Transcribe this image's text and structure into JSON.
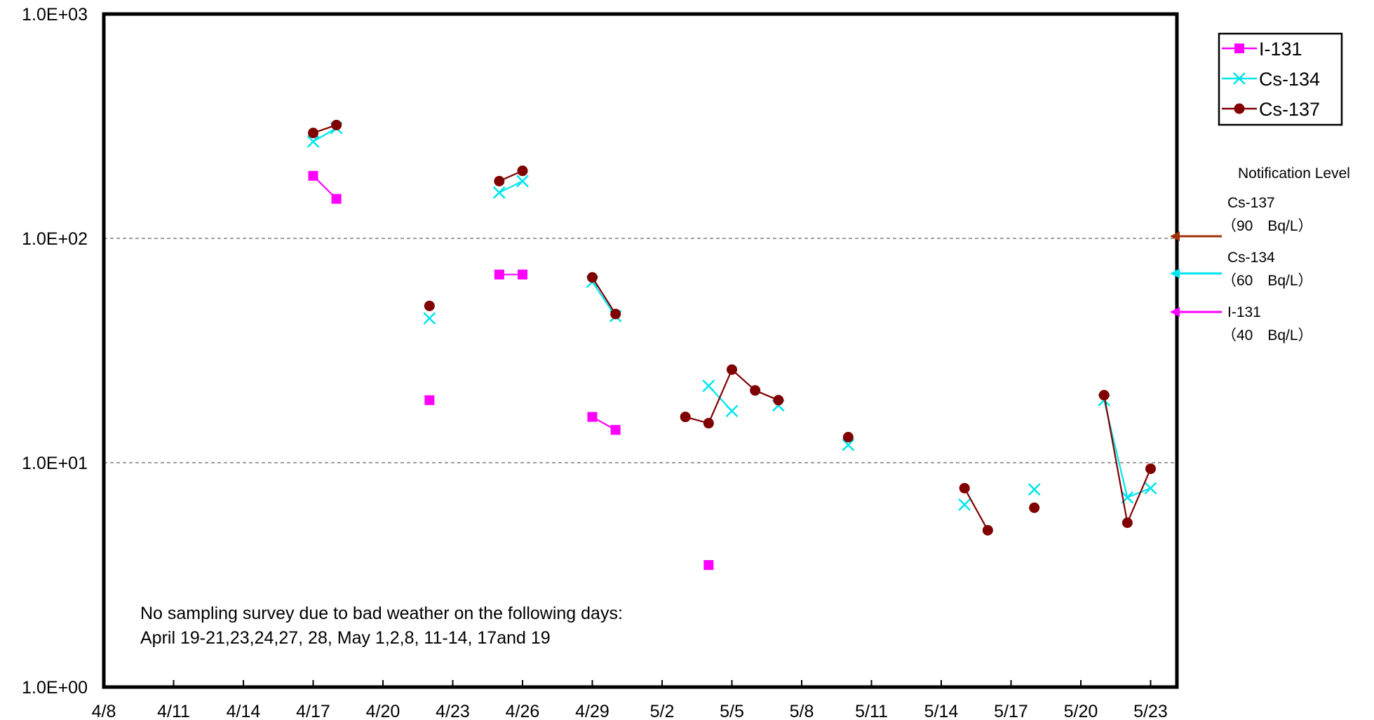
{
  "chart_data": {
    "type": "line",
    "title": "",
    "xlabel": "",
    "ylabel": "",
    "yscale": "log",
    "ylim": [
      1,
      1000
    ],
    "x_tick_labels": [
      "4/8",
      "4/11",
      "4/14",
      "4/17",
      "4/20",
      "4/23",
      "4/26",
      "4/29",
      "5/2",
      "5/5",
      "5/8",
      "5/11",
      "5/14",
      "5/17",
      "5/20",
      "5/23"
    ],
    "y_tick_labels": [
      "1.0E+03",
      "1.0E+02",
      "1.0E+01",
      "1.0E+00"
    ],
    "grid": "dashed horizontal lines at 10 and 100",
    "legend_position": "top-right",
    "series": [
      {
        "name": "I-131",
        "color": "#ff00ff",
        "marker": "square",
        "segments": [
          [
            {
              "x": "4/17",
              "y": 190
            },
            {
              "x": "4/18",
              "y": 150
            }
          ],
          [
            {
              "x": "4/22",
              "y": 19
            }
          ],
          [
            {
              "x": "4/25",
              "y": 69
            },
            {
              "x": "4/26",
              "y": 69
            }
          ],
          [
            {
              "x": "4/29",
              "y": 16
            },
            {
              "x": "4/30",
              "y": 14
            }
          ],
          [
            {
              "x": "5/4",
              "y": 3.5
            }
          ]
        ]
      },
      {
        "name": "Cs-134",
        "color": "#00e5ee",
        "marker": "x",
        "segments": [
          [
            {
              "x": "4/17",
              "y": 270
            },
            {
              "x": "4/18",
              "y": 310
            }
          ],
          [
            {
              "x": "4/22",
              "y": 44
            }
          ],
          [
            {
              "x": "4/25",
              "y": 160
            },
            {
              "x": "4/26",
              "y": 180
            }
          ],
          [
            {
              "x": "4/29",
              "y": 64
            },
            {
              "x": "4/30",
              "y": 45
            }
          ],
          [
            {
              "x": "5/4",
              "y": 22
            },
            {
              "x": "5/5",
              "y": 17
            }
          ],
          [
            {
              "x": "5/7",
              "y": 18
            }
          ],
          [
            {
              "x": "5/10",
              "y": 12
            }
          ],
          [
            {
              "x": "5/15",
              "y": 6.5
            }
          ],
          [
            {
              "x": "5/18",
              "y": 7.6
            }
          ],
          [
            {
              "x": "5/21",
              "y": 19
            },
            {
              "x": "5/22",
              "y": 7
            },
            {
              "x": "5/23",
              "y": 7.7
            }
          ]
        ]
      },
      {
        "name": "Cs-137",
        "color": "#800000",
        "marker": "circle",
        "segments": [
          [
            {
              "x": "4/17",
              "y": 295
            },
            {
              "x": "4/18",
              "y": 320
            }
          ],
          [
            {
              "x": "4/22",
              "y": 50
            }
          ],
          [
            {
              "x": "4/25",
              "y": 180
            },
            {
              "x": "4/26",
              "y": 200
            }
          ],
          [
            {
              "x": "4/29",
              "y": 67
            },
            {
              "x": "4/30",
              "y": 46
            }
          ],
          [
            {
              "x": "5/3",
              "y": 16
            },
            {
              "x": "5/4",
              "y": 15
            },
            {
              "x": "5/5",
              "y": 26
            },
            {
              "x": "5/6",
              "y": 21
            },
            {
              "x": "5/7",
              "y": 19
            }
          ],
          [
            {
              "x": "5/10",
              "y": 13
            }
          ],
          [
            {
              "x": "5/15",
              "y": 7.7
            },
            {
              "x": "5/16",
              "y": 5
            }
          ],
          [
            {
              "x": "5/18",
              "y": 6.3
            }
          ],
          [
            {
              "x": "5/21",
              "y": 20
            },
            {
              "x": "5/22",
              "y": 5.4
            },
            {
              "x": "5/23",
              "y": 9.4
            }
          ]
        ]
      }
    ],
    "notification": {
      "title": "Notification Level",
      "levels": [
        {
          "name": "Cs-137",
          "text": "（90　Bq/L）",
          "value": 90,
          "color": "#a0300a"
        },
        {
          "name": "Cs-134",
          "text": "（60　Bq/L）",
          "value": 60,
          "color": "#00e5ee"
        },
        {
          "name": "I-131",
          "text": "（40　Bq/L）",
          "value": 40,
          "color": "#ff00ff"
        }
      ]
    },
    "annotation": [
      "No sampling survey due to bad weather on the following days:",
      "April 19-21,23,24,27, 28, May 1,2,8, 11-14, 17and 19"
    ]
  }
}
